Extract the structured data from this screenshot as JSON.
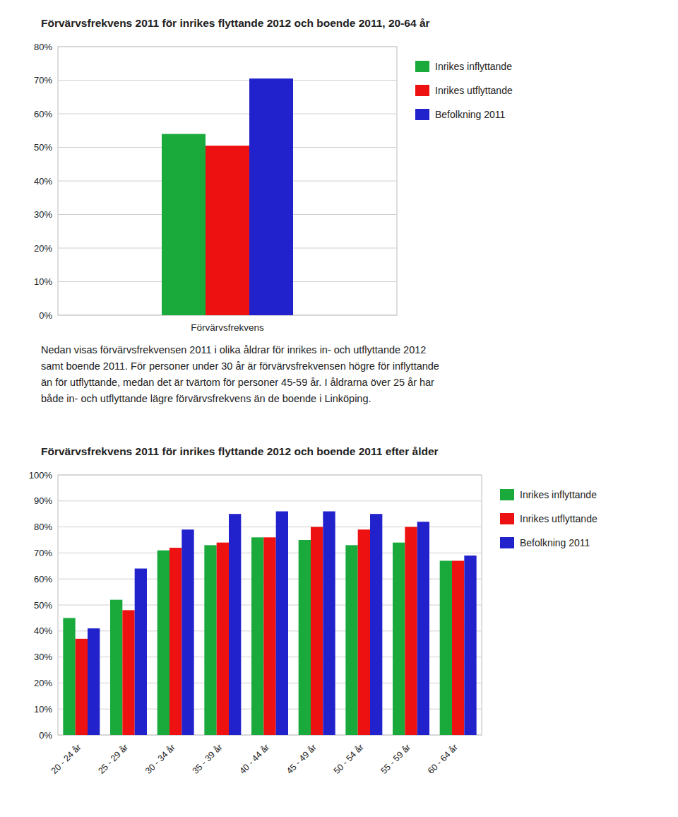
{
  "chart_data": [
    {
      "type": "bar",
      "title": "Förvärvsfrekvens 2011 för inrikes flyttande 2012 och boende 2011, 20-64 år",
      "categories": [
        "Förvärvsfrekvens"
      ],
      "series": [
        {
          "name": "Inrikes inflyttande",
          "color": "#1aaa3c",
          "values": [
            0.54
          ]
        },
        {
          "name": "Inrikes utflyttande",
          "color": "#ee1111",
          "values": [
            0.505
          ]
        },
        {
          "name": "Befolkning 2011",
          "color": "#2222cc",
          "values": [
            0.705
          ]
        }
      ],
      "ylim": [
        0,
        0.8
      ],
      "yticks": [
        {
          "value": 0.0,
          "label": "0%"
        },
        {
          "value": 0.1,
          "label": "10%"
        },
        {
          "value": 0.2,
          "label": "20%"
        },
        {
          "value": 0.3,
          "label": "30%"
        },
        {
          "value": 0.4,
          "label": "40%"
        },
        {
          "value": 0.5,
          "label": "50%"
        },
        {
          "value": 0.6,
          "label": "60%"
        },
        {
          "value": 0.7,
          "label": "70%"
        },
        {
          "value": 0.8,
          "label": "80%"
        }
      ],
      "grid": true,
      "legend": "right"
    },
    {
      "type": "bar",
      "title": "Förvärvsfrekvens 2011 för inrikes flyttande 2012 och boende 2011 efter ålder",
      "annotations": [
        "Nedan visas förvärvsfrekvensen 2011 i olika åldrar för inrikes in- och utflyttande 2012\nsamt boende 2011. För personer under 30 år är förvärvsfrekvensen högre för inflyttande\nän för utflyttande, medan det är tvärtom för personer 45-59 år. I åldrarna över 25 år har\nbåde in- och utflyttande lägre förvärvsfrekvens än de boende i Linköping."
      ],
      "categories": [
        "20 - 24 år",
        "25 - 29 år",
        "30 - 34 år",
        "35 - 39 år",
        "40 - 44 år",
        "45 - 49 år",
        "50 - 54 år",
        "55 - 59 år",
        "60 - 64 år"
      ],
      "series": [
        {
          "name": "Inrikes inflyttande",
          "color": "#1aaa3c",
          "values": [
            0.45,
            0.52,
            0.71,
            0.73,
            0.76,
            0.75,
            0.73,
            0.74,
            0.67
          ]
        },
        {
          "name": "Inrikes utflyttande",
          "color": "#ee1111",
          "values": [
            0.37,
            0.48,
            0.72,
            0.74,
            0.76,
            0.8,
            0.79,
            0.8,
            0.67
          ]
        },
        {
          "name": "Befolkning 2011",
          "color": "#2222cc",
          "values": [
            0.41,
            0.64,
            0.79,
            0.85,
            0.86,
            0.86,
            0.85,
            0.82,
            0.69
          ]
        }
      ],
      "ylim": [
        0,
        1.0
      ],
      "yticks": [
        {
          "value": 0.0,
          "label": "0%"
        },
        {
          "value": 0.1,
          "label": "10%"
        },
        {
          "value": 0.2,
          "label": "20%"
        },
        {
          "value": 0.3,
          "label": "30%"
        },
        {
          "value": 0.4,
          "label": "40%"
        },
        {
          "value": 0.5,
          "label": "50%"
        },
        {
          "value": 0.6,
          "label": "60%"
        },
        {
          "value": 0.7,
          "label": "70%"
        },
        {
          "value": 0.8,
          "label": "80%"
        },
        {
          "value": 0.9,
          "label": "90%"
        },
        {
          "value": 1.0,
          "label": "100%"
        }
      ],
      "grid": true,
      "legend": "right"
    }
  ]
}
